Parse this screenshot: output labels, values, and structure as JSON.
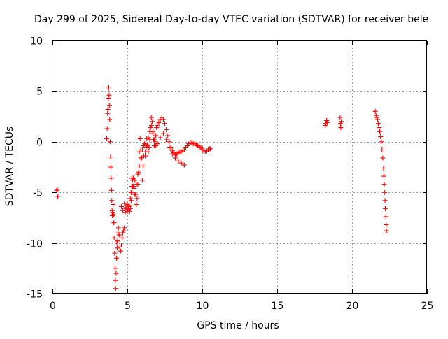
{
  "chart_data": {
    "type": "scatter",
    "title": "Day 299 of 2025, Sidereal Day-to-day VTEC variation (SDTVAR) for receiver bele",
    "xlabel": "GPS time / hours",
    "ylabel": "SDTVAR / TECUs",
    "xlim": [
      0,
      25
    ],
    "ylim": [
      -15,
      10
    ],
    "xticks": [
      0,
      5,
      10,
      15,
      20,
      25
    ],
    "yticks": [
      -15,
      -10,
      -5,
      0,
      5,
      10
    ],
    "xtick_labels": [
      "0",
      "5",
      "10",
      "15",
      "20",
      "25"
    ],
    "ytick_labels": [
      "-15",
      "-10",
      "-5",
      "0",
      "5",
      "10"
    ],
    "grid": true,
    "marker": "+",
    "series_color": "#ff0000",
    "series": [
      {
        "name": "SDTVAR",
        "x": [
          0.28,
          0.32,
          0.36,
          3.62,
          3.65,
          3.68,
          3.7,
          3.72,
          3.74,
          3.76,
          3.78,
          3.8,
          3.82,
          3.85,
          3.88,
          3.9,
          3.92,
          3.94,
          3.96,
          3.98,
          4.0,
          4.02,
          4.05,
          4.08,
          4.1,
          4.12,
          4.15,
          4.18,
          4.2,
          4.22,
          4.25,
          4.28,
          4.3,
          4.32,
          4.35,
          4.38,
          4.4,
          4.45,
          4.5,
          4.55,
          4.6,
          4.65,
          4.7,
          4.75,
          4.8,
          4.85,
          4.9,
          5.0,
          5.05,
          5.1,
          5.15,
          5.2,
          5.25,
          5.3,
          5.35,
          5.4,
          5.45,
          5.5,
          5.55,
          5.6,
          5.65,
          5.7,
          5.75,
          5.8,
          5.85,
          5.9,
          5.95,
          6.0,
          6.05,
          6.1,
          6.15,
          6.2,
          6.25,
          6.3,
          6.35,
          6.4,
          6.45,
          6.5,
          6.55,
          6.6,
          6.65,
          6.7,
          6.75,
          6.8,
          6.85,
          6.9,
          6.95,
          7.0,
          7.1,
          7.2,
          7.3,
          7.4,
          7.5,
          7.6,
          7.7,
          7.8,
          7.9,
          8.0,
          8.1,
          8.2,
          8.3,
          8.4,
          8.5,
          8.6,
          8.7,
          8.8,
          8.9,
          9.0,
          9.1,
          9.2,
          9.3,
          9.4,
          9.5,
          9.6,
          9.7,
          9.8,
          9.9,
          10.0,
          10.1,
          10.2,
          10.3,
          10.4,
          10.5,
          10.55,
          5.3,
          5.4,
          5.5,
          5.6,
          5.7,
          5.8,
          5.9,
          6.0,
          6.1,
          6.2,
          6.3,
          6.4,
          6.5,
          6.6,
          6.7,
          6.8,
          6.9,
          7.0,
          7.2,
          7.4,
          7.6,
          7.8,
          8.0,
          8.2,
          8.4,
          8.6,
          8.8,
          4.6,
          4.7,
          4.8,
          4.9,
          5.0,
          5.1,
          5.2,
          5.25,
          5.3,
          5.35,
          18.2,
          18.25,
          18.3,
          18.35,
          19.2,
          19.22,
          19.25,
          19.28,
          21.55,
          21.6,
          21.65,
          21.7,
          21.75,
          21.8,
          21.85,
          21.9,
          21.95,
          22.0,
          22.05,
          22.1,
          22.12,
          22.15,
          22.18,
          22.2,
          22.22,
          22.25,
          22.28,
          22.3
        ],
        "y": [
          -4.8,
          -4.7,
          -5.4,
          0.3,
          1.3,
          2.8,
          3.2,
          4.3,
          5.2,
          5.4,
          4.6,
          3.6,
          2.2,
          0.0,
          -1.5,
          -2.5,
          -3.6,
          -4.8,
          -5.8,
          -6.8,
          -7.3,
          -7.0,
          -6.2,
          -7.2,
          -8.0,
          -9.5,
          -11.0,
          -12.5,
          -13.7,
          -14.5,
          -13.0,
          -11.5,
          -10.0,
          -10.5,
          -9.8,
          -9.0,
          -8.5,
          -9.2,
          -10.4,
          -10.8,
          -10.2,
          -9.5,
          -9.0,
          -8.8,
          -8.5,
          -7.0,
          -6.5,
          -6.2,
          -6.7,
          -6.4,
          -6.9,
          -6.6,
          -5.8,
          -5.0,
          -4.4,
          -3.6,
          -4.6,
          -3.8,
          -5.2,
          -6.2,
          -5.6,
          -4.2,
          -3.0,
          -1.0,
          0.3,
          -0.8,
          -1.6,
          -3.8,
          -2.4,
          -1.4,
          -0.2,
          -1.4,
          -0.6,
          0.3,
          -0.4,
          -1.0,
          -0.6,
          0.2,
          1.4,
          2.4,
          2.0,
          1.0,
          0.2,
          -0.4,
          0.0,
          0.6,
          1.4,
          1.6,
          1.9,
          2.2,
          2.4,
          2.2,
          1.8,
          1.2,
          0.6,
          0.0,
          -0.6,
          -0.9,
          -1.1,
          -1.3,
          -1.2,
          -1.1,
          -1.0,
          -1.0,
          -0.9,
          -0.8,
          -0.6,
          -0.4,
          -0.2,
          -0.1,
          -0.1,
          -0.2,
          -0.2,
          -0.3,
          -0.4,
          -0.5,
          -0.6,
          -0.7,
          -0.9,
          -1.0,
          -0.9,
          -0.8,
          -0.7,
          -0.7,
          -3.6,
          -4.4,
          -5.2,
          -4.2,
          -3.2,
          -2.4,
          -1.6,
          -0.8,
          -0.4,
          -1.0,
          -0.3,
          0.4,
          1.0,
          1.6,
          0.8,
          0.2,
          -0.4,
          -0.2,
          0.4,
          0.8,
          0.2,
          -0.6,
          -1.2,
          -1.6,
          -1.9,
          -2.1,
          -2.3,
          -6.4,
          -6.8,
          -6.1,
          -6.6,
          -6.9,
          -6.3,
          -5.6,
          -5.0,
          -4.4,
          -3.8,
          1.6,
          1.8,
          2.1,
          1.9,
          2.4,
          1.8,
          1.4,
          2.0,
          3.0,
          2.6,
          2.4,
          2.2,
          1.8,
          1.4,
          1.0,
          0.5,
          0.0,
          -0.8,
          -1.6,
          -2.6,
          -3.4,
          -4.2,
          -5.0,
          -5.8,
          -6.6,
          -7.4,
          -8.2,
          -8.8
        ]
      }
    ]
  }
}
